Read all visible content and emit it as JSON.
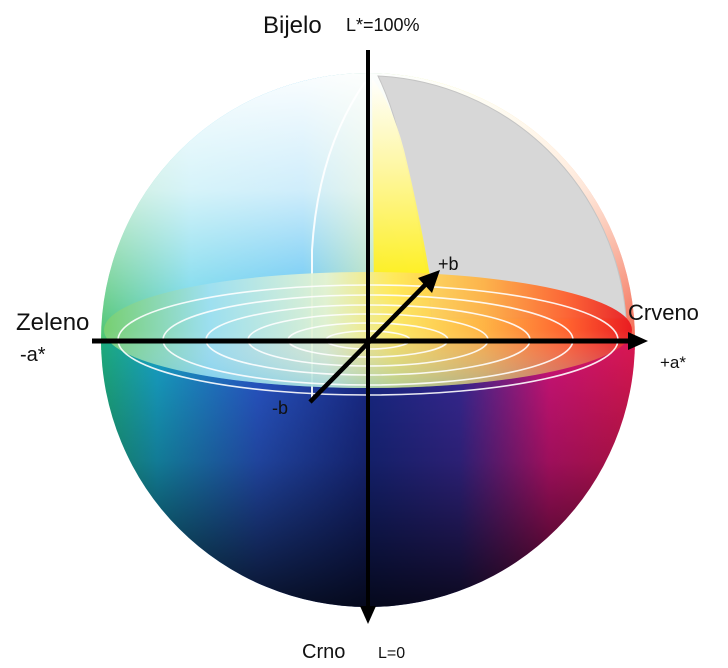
{
  "labels": {
    "top": "Bijelo",
    "top_value": "L*=100%",
    "left": "Zeleno",
    "left_axis": "-a*",
    "right": "Crveno",
    "right_axis": "+a*",
    "plus_b": "+b",
    "minus_b": "-b",
    "bottom": "Crno",
    "bottom_value": "L=0"
  },
  "colors": {
    "white": "#ffffff",
    "yellow": "#ffee00",
    "red": "#e8141c",
    "magenta": "#d2147a",
    "blue": "#1a2a8c",
    "cyan": "#18b8f0",
    "green": "#18a040",
    "black": "#0b0b0b",
    "cutaway_grey": "#d7d7d7"
  }
}
